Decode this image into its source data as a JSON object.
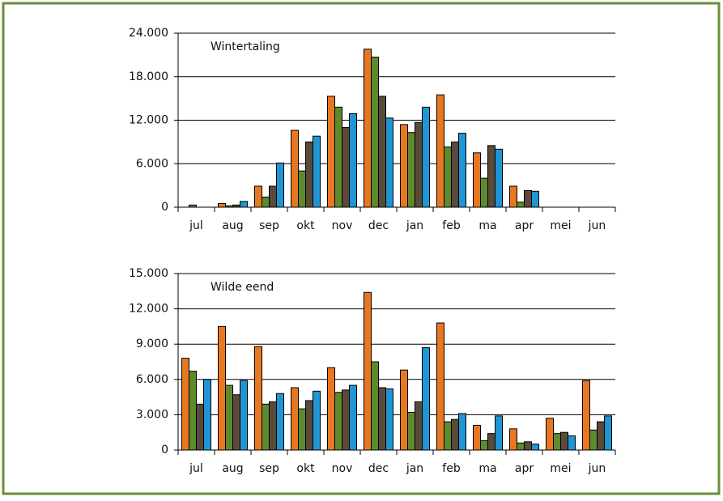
{
  "chart_data": [
    {
      "type": "bar",
      "title": "Wintertaling",
      "categories": [
        "jul",
        "aug",
        "sep",
        "okt",
        "nov",
        "dec",
        "jan",
        "feb",
        "ma",
        "apr",
        "mei",
        "jun"
      ],
      "series": [
        {
          "color": "#e87722",
          "values": [
            0,
            500,
            2900,
            10600,
            15300,
            21800,
            11400,
            15500,
            7500,
            2900,
            0,
            0
          ]
        },
        {
          "color": "#5e8a2e",
          "values": [
            300,
            200,
            1400,
            5000,
            13800,
            20700,
            10300,
            8300,
            4000,
            700,
            0,
            0
          ]
        },
        {
          "color": "#5a4a3a",
          "values": [
            0,
            300,
            2900,
            9000,
            11000,
            15300,
            11700,
            9000,
            8500,
            2300,
            0,
            0
          ]
        },
        {
          "color": "#1f95d3",
          "values": [
            0,
            800,
            6100,
            9800,
            12900,
            12300,
            13800,
            10200,
            8000,
            2200,
            0,
            0
          ]
        }
      ],
      "ylim": [
        0,
        24000
      ],
      "yticks": [
        0,
        {
          "value": 6000,
          "label": "6.000"
        },
        {
          "value": 12000,
          "label": "12.000"
        },
        {
          "value": 18000,
          "label": "18.000"
        },
        {
          "value": 24000,
          "label": "24.000"
        }
      ],
      "grid": true
    },
    {
      "type": "bar",
      "title": "Wilde eend",
      "categories": [
        "jul",
        "aug",
        "sep",
        "okt",
        "nov",
        "dec",
        "jan",
        "feb",
        "ma",
        "apr",
        "mei",
        "jun"
      ],
      "series": [
        {
          "color": "#e87722",
          "values": [
            7800,
            10500,
            8800,
            5300,
            7000,
            13400,
            6800,
            10800,
            2100,
            1800,
            2700,
            5900
          ]
        },
        {
          "color": "#5e8a2e",
          "values": [
            6700,
            5500,
            3900,
            3500,
            4900,
            7500,
            3200,
            2400,
            800,
            600,
            1400,
            1700
          ]
        },
        {
          "color": "#5a4a3a",
          "values": [
            3900,
            4700,
            4100,
            4200,
            5100,
            5300,
            4100,
            2600,
            1400,
            700,
            1500,
            2400
          ]
        },
        {
          "color": "#1f95d3",
          "values": [
            6000,
            5900,
            4800,
            5000,
            5500,
            5200,
            8700,
            3100,
            2900,
            500,
            1200,
            2900
          ]
        }
      ],
      "ylim": [
        0,
        15000
      ],
      "yticks": [
        0,
        {
          "value": 3000,
          "label": "3.000"
        },
        {
          "value": 6000,
          "label": "6.000"
        },
        {
          "value": 9000,
          "label": "9.000"
        },
        {
          "value": 12000,
          "label": "12.000"
        },
        {
          "value": 15000,
          "label": "15.000"
        }
      ],
      "grid": true
    }
  ]
}
